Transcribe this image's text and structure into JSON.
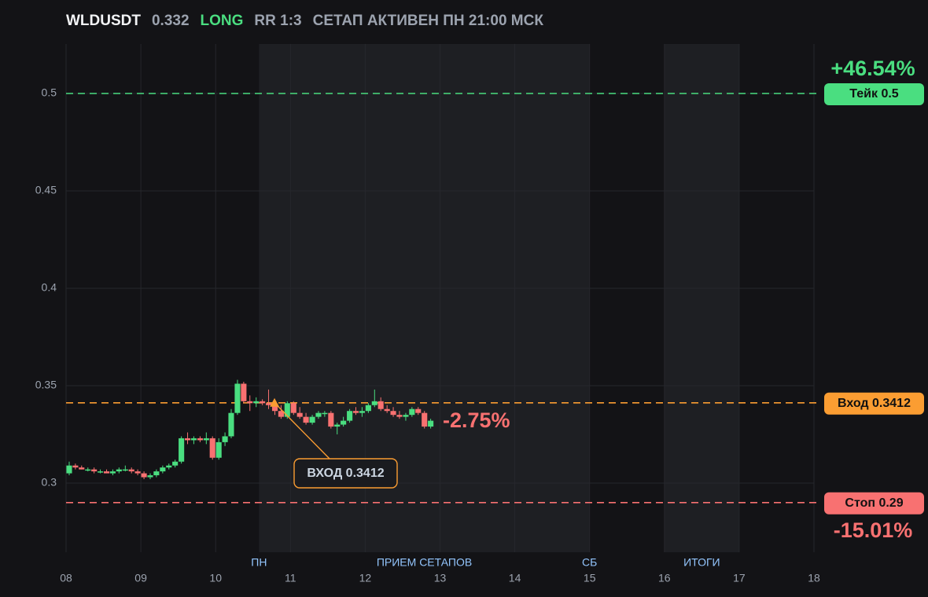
{
  "header": {
    "symbol": "WLDUSDT",
    "price": "0.332",
    "side": "LONG",
    "rr": "RR 1:3",
    "status": "СЕТАП АКТИВЕН ПН 21:00 МСК"
  },
  "chart_data": {
    "type": "candlestick",
    "xlim": [
      8,
      18
    ],
    "ylim": [
      0.2645,
      0.5254
    ],
    "xticks": [
      {
        "value": 8,
        "label": "08"
      },
      {
        "value": 9,
        "label": "09"
      },
      10,
      11,
      12,
      13,
      14,
      15,
      16,
      17,
      18
    ],
    "yticks": [
      0.3,
      0.35,
      0.4,
      0.45,
      0.5
    ],
    "grid": true,
    "up_color": "#4ade80",
    "down_color": "#f87171",
    "x": [
      8.042,
      8.125,
      8.208,
      8.292,
      8.375,
      8.458,
      8.542,
      8.625,
      8.708,
      8.792,
      8.875,
      8.958,
      9.042,
      9.125,
      9.208,
      9.292,
      9.375,
      9.458,
      9.542,
      9.625,
      9.708,
      9.792,
      9.875,
      9.958,
      10.042,
      10.125,
      10.208,
      10.292,
      10.375,
      10.458,
      10.542,
      10.625,
      10.708,
      10.792,
      10.875,
      10.958,
      11.042,
      11.125,
      11.208,
      11.292,
      11.375,
      11.458,
      11.542,
      11.625,
      11.708,
      11.792,
      11.875,
      11.958,
      12.042,
      12.125,
      12.208,
      12.292,
      12.375,
      12.458,
      12.542,
      12.625,
      12.708,
      12.792,
      12.875
    ],
    "ohlc": [
      [
        0.305,
        0.311,
        0.304,
        0.309
      ],
      [
        0.309,
        0.31,
        0.307,
        0.308
      ],
      [
        0.308,
        0.309,
        0.307,
        0.307
      ],
      [
        0.307,
        0.308,
        0.306,
        0.307
      ],
      [
        0.307,
        0.308,
        0.305,
        0.306
      ],
      [
        0.306,
        0.307,
        0.305,
        0.306
      ],
      [
        0.306,
        0.307,
        0.305,
        0.305
      ],
      [
        0.305,
        0.307,
        0.304,
        0.306
      ],
      [
        0.306,
        0.308,
        0.305,
        0.307
      ],
      [
        0.307,
        0.309,
        0.306,
        0.307
      ],
      [
        0.307,
        0.308,
        0.305,
        0.306
      ],
      [
        0.306,
        0.307,
        0.304,
        0.305
      ],
      [
        0.305,
        0.306,
        0.302,
        0.303
      ],
      [
        0.303,
        0.305,
        0.302,
        0.304
      ],
      [
        0.304,
        0.307,
        0.303,
        0.306
      ],
      [
        0.306,
        0.309,
        0.305,
        0.308
      ],
      [
        0.308,
        0.31,
        0.307,
        0.309
      ],
      [
        0.309,
        0.312,
        0.308,
        0.311
      ],
      [
        0.311,
        0.324,
        0.31,
        0.323
      ],
      [
        0.323,
        0.326,
        0.32,
        0.322
      ],
      [
        0.322,
        0.324,
        0.32,
        0.323
      ],
      [
        0.323,
        0.324,
        0.321,
        0.322
      ],
      [
        0.322,
        0.326,
        0.32,
        0.323
      ],
      [
        0.323,
        0.324,
        0.312,
        0.313
      ],
      [
        0.313,
        0.323,
        0.312,
        0.321
      ],
      [
        0.321,
        0.326,
        0.319,
        0.324
      ],
      [
        0.324,
        0.338,
        0.323,
        0.336
      ],
      [
        0.336,
        0.353,
        0.335,
        0.351
      ],
      [
        0.351,
        0.352,
        0.341,
        0.342
      ],
      [
        0.342,
        0.345,
        0.337,
        0.341
      ],
      [
        0.341,
        0.344,
        0.339,
        0.342
      ],
      [
        0.342,
        0.343,
        0.34,
        0.341
      ],
      [
        0.341,
        0.348,
        0.338,
        0.34
      ],
      [
        0.34,
        0.343,
        0.335,
        0.337
      ],
      [
        0.337,
        0.34,
        0.333,
        0.334
      ],
      [
        0.334,
        0.342,
        0.333,
        0.341
      ],
      [
        0.341,
        0.342,
        0.335,
        0.336
      ],
      [
        0.336,
        0.339,
        0.333,
        0.334
      ],
      [
        0.334,
        0.336,
        0.33,
        0.331
      ],
      [
        0.331,
        0.335,
        0.33,
        0.334
      ],
      [
        0.334,
        0.337,
        0.333,
        0.336
      ],
      [
        0.336,
        0.337,
        0.334,
        0.336
      ],
      [
        0.336,
        0.337,
        0.328,
        0.329
      ],
      [
        0.329,
        0.331,
        0.325,
        0.33
      ],
      [
        0.33,
        0.334,
        0.329,
        0.332
      ],
      [
        0.332,
        0.338,
        0.331,
        0.337
      ],
      [
        0.337,
        0.339,
        0.335,
        0.336
      ],
      [
        0.336,
        0.339,
        0.334,
        0.337
      ],
      [
        0.337,
        0.341,
        0.336,
        0.34
      ],
      [
        0.34,
        0.348,
        0.339,
        0.342
      ],
      [
        0.342,
        0.344,
        0.337,
        0.338
      ],
      [
        0.338,
        0.34,
        0.336,
        0.337
      ],
      [
        0.337,
        0.339,
        0.334,
        0.335
      ],
      [
        0.335,
        0.337,
        0.333,
        0.334
      ],
      [
        0.334,
        0.336,
        0.332,
        0.335
      ],
      [
        0.335,
        0.339,
        0.334,
        0.338
      ],
      [
        0.338,
        0.339,
        0.335,
        0.336
      ],
      [
        0.336,
        0.337,
        0.328,
        0.329
      ],
      [
        0.329,
        0.333,
        0.328,
        0.332
      ]
    ],
    "regions": [
      {
        "x0": 10.58,
        "x1": 15
      },
      {
        "x0": 16,
        "x1": 17
      }
    ],
    "session_labels": [
      {
        "x": 10.58,
        "label": "ПН"
      },
      {
        "x": 12.79,
        "label": "ПРИЕМ СЕТАПОВ"
      },
      {
        "x": 15,
        "label": "СБ"
      },
      {
        "x": 16.5,
        "label": "ИТОГИ"
      }
    ],
    "levels": [
      {
        "value": 0.5,
        "label": "Тейк 0.5",
        "color": "#4ade80"
      },
      {
        "value": 0.3412,
        "label": "Вход 0.3412",
        "color": "#fb9d32"
      },
      {
        "value": 0.29,
        "label": "Стоп 0.29",
        "color": "#f87171"
      }
    ],
    "entry": {
      "x": 10.787,
      "value": 0.3412,
      "label": "ВХОД 0.3412",
      "color": "#fb9d32"
    },
    "take_change": "+46.54%",
    "stop_change": "-15.01%",
    "current_change": "-2.75%"
  }
}
